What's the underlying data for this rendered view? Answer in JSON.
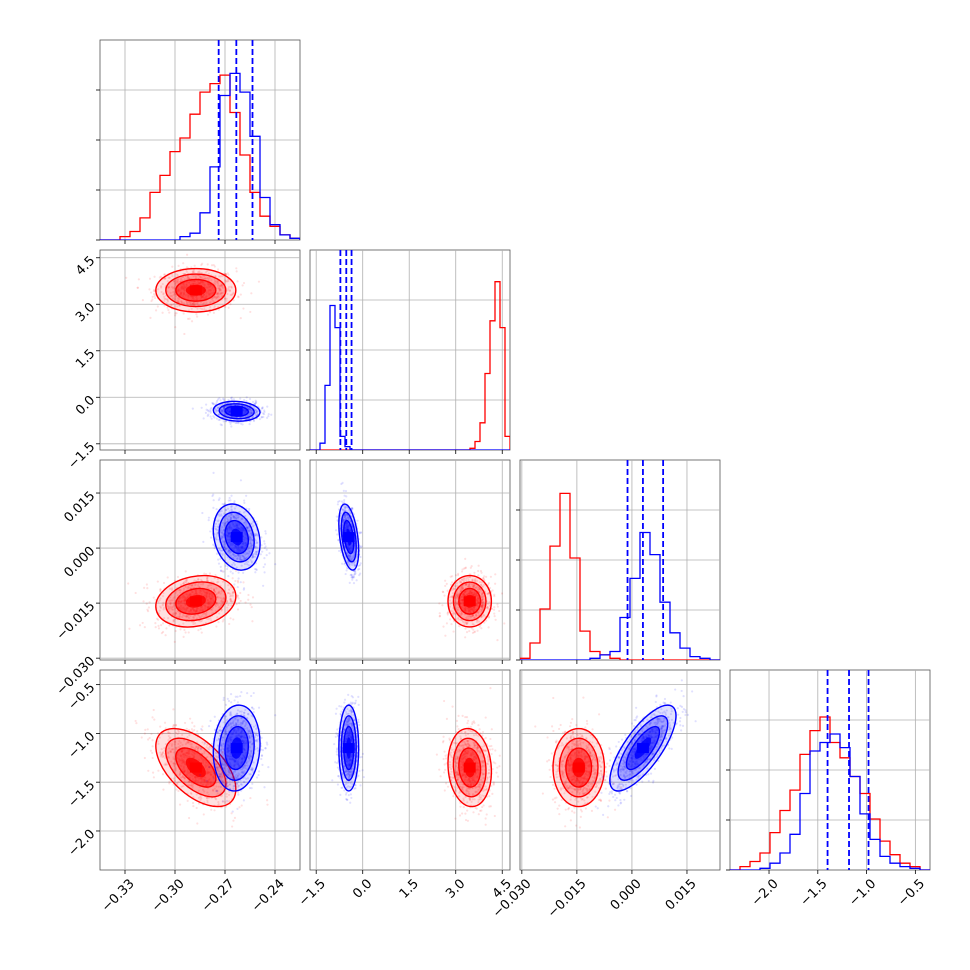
{
  "colors": {
    "series_a": "#ff0000",
    "series_b": "#0000ff"
  },
  "chart_data": {
    "type": "corner",
    "grid": true,
    "title": "",
    "series": [
      {
        "color": "#ff0000",
        "param_means": [
          -0.2875,
          3.45,
          -0.0145,
          -1.35
        ],
        "correlations": {
          "0-1": 0.0,
          "0-2": 0.2,
          "0-3": -0.55,
          "1-2": 0.0,
          "1-3": -0.1,
          "2-3": 0.0
        },
        "hist_values": [
          [
            0.0,
            0.0,
            0.02,
            0.05,
            0.13,
            0.28,
            0.38,
            0.52,
            0.6,
            0.74,
            0.87,
            0.92,
            0.97,
            0.75,
            0.5,
            0.28,
            0.14,
            0.08,
            0.03,
            0.01
          ],
          [
            0,
            0,
            0,
            0,
            0,
            0,
            0,
            0,
            0,
            0,
            0,
            0,
            0,
            0,
            0,
            0,
            0,
            0,
            0,
            0,
            0,
            0,
            0,
            0,
            0,
            0,
            0,
            0,
            0,
            0,
            0,
            0,
            0.01,
            0.05,
            0.16,
            0.45,
            0.76,
            0.99,
            0.72,
            0.08
          ],
          [
            0.01,
            0.1,
            0.3,
            0.67,
            0.98,
            0.6,
            0.17,
            0.05,
            0.03,
            0.01,
            0.0,
            0,
            0,
            0,
            0,
            0,
            0,
            0,
            0,
            0
          ],
          [
            0.0,
            0.02,
            0.05,
            0.1,
            0.22,
            0.35,
            0.47,
            0.68,
            0.82,
            0.9,
            0.75,
            0.66,
            0.55,
            0.45,
            0.3,
            0.17,
            0.09,
            0.04,
            0.02,
            0.0
          ]
        ]
      },
      {
        "color": "#0000ff",
        "param_means": [
          -0.263,
          -0.45,
          0.003,
          -1.15
        ],
        "correlations": {
          "0-1": -0.1,
          "0-2": -0.2,
          "0-3": 0.1,
          "1-2": -0.4,
          "1-3": 0.0,
          "2-3": 0.75
        },
        "quantiles": [
          [
            -0.2738,
            -0.2632,
            -0.2535
          ],
          [
            -0.72,
            -0.53,
            -0.36
          ],
          [
            -0.0012,
            0.003,
            0.0085
          ],
          [
            -1.4,
            -1.18,
            -0.98
          ]
        ],
        "hist_values": [
          [
            0,
            0,
            0,
            0,
            0,
            0,
            0,
            0,
            0.02,
            0.04,
            0.16,
            0.43,
            0.85,
            0.98,
            0.87,
            0.61,
            0.25,
            0.09,
            0.03,
            0.01
          ],
          [
            0,
            0,
            0.04,
            0.38,
            0.85,
            0.72,
            0.08,
            0.02,
            0,
            0,
            0,
            0,
            0,
            0,
            0,
            0,
            0,
            0,
            0,
            0,
            0,
            0,
            0,
            0,
            0,
            0,
            0,
            0,
            0,
            0,
            0,
            0,
            0,
            0,
            0,
            0,
            0,
            0,
            0,
            0
          ],
          [
            0,
            0,
            0,
            0,
            0,
            0,
            0,
            0.01,
            0.03,
            0.05,
            0.25,
            0.48,
            0.75,
            0.62,
            0.34,
            0.16,
            0.07,
            0.02,
            0.01,
            0.0
          ],
          [
            0,
            0,
            0,
            0.01,
            0.04,
            0.1,
            0.21,
            0.45,
            0.7,
            0.75,
            0.8,
            0.72,
            0.55,
            0.33,
            0.18,
            0.08,
            0.04,
            0.02,
            0.01,
            0.0
          ]
        ]
      }
    ],
    "params": [
      {
        "range": [
          -0.345,
          -0.225
        ],
        "ticks": [
          -0.33,
          -0.3,
          -0.27,
          -0.24
        ],
        "tick_labels": [
          "−0.33",
          "−0.30",
          "−0.27",
          "−0.24"
        ],
        "std": [
          0.012,
          0.007
        ],
        "bins": 20
      },
      {
        "range": [
          -1.7,
          4.75
        ],
        "ticks": [
          -1.5,
          0.0,
          1.5,
          3.0,
          4.5
        ],
        "tick_labels": [
          "−1.5",
          "0.0",
          "1.5",
          "3.0",
          "4.5"
        ],
        "std": [
          0.35,
          0.16
        ],
        "bins": 40
      },
      {
        "range": [
          -0.0305,
          0.024
        ],
        "ticks": [
          -0.03,
          -0.015,
          0.0,
          0.015
        ],
        "tick_labels": [
          "−0.030",
          "−0.015",
          "0.000",
          "0.015"
        ],
        "std": [
          0.0035,
          0.0045
        ],
        "bins": 20
      },
      {
        "range": [
          -2.4,
          -0.35
        ],
        "ticks": [
          -2.0,
          -1.5,
          -1.0,
          -0.5
        ],
        "tick_labels": [
          "−2.0",
          "−1.5",
          "−1.0",
          "−0.5"
        ],
        "std": [
          0.2,
          0.22
        ],
        "bins": 20
      }
    ]
  }
}
